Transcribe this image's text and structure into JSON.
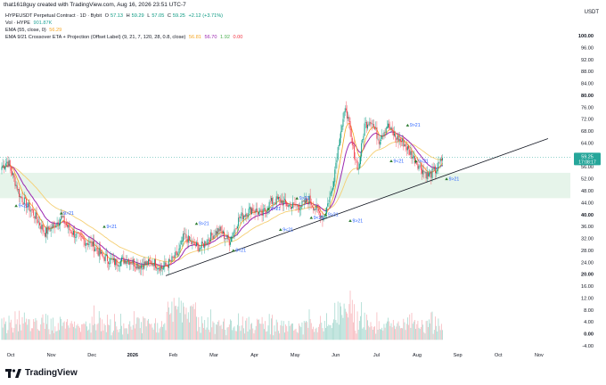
{
  "header": {
    "credit": "that1618guy created with TradingView.com, Aug 16, 2026 23:51 UTC-7",
    "currency": "USDT"
  },
  "legend": {
    "title": "HYPEUSDT Perpetual Contract · 1D · Bybit",
    "open_label": "O",
    "open": "57.13",
    "high_label": "H",
    "high": "59.29",
    "low_label": "L",
    "low": "57.05",
    "close_label": "C",
    "close": "59.25",
    "change": "+2.12 (+3.71%)",
    "vol_label": "Vol · HYPE",
    "vol_value": "901.87K",
    "ema_label": "EMA (55, close, 0)",
    "ema_value": "56.29",
    "cross_label": "EMA 9/21 Crossover ETA + Projection (Offset Label) (9, 21, 7, 120, 28, 0.8, close)",
    "cross_values": [
      "56.81",
      "56.70",
      "1.92",
      "0.00"
    ]
  },
  "price_badge": {
    "price": "59.25",
    "countdown": "17:08:17"
  },
  "brand": {
    "name": "TradingView"
  },
  "colors": {
    "up": "#089981",
    "down": "#f23645",
    "ema9": "#f5a623",
    "ema21": "#9c27b0",
    "ema55": "#f5cf73",
    "zone": "#e6f4ea",
    "trendline": "#131722",
    "badge": "#26a69a"
  },
  "chart_data": {
    "type": "candlestick",
    "price_axis": {
      "ticks": [
        "100.00",
        "96.00",
        "92.00",
        "88.00",
        "84.00",
        "80.00",
        "76.00",
        "72.00",
        "68.00",
        "64.00",
        "60.00",
        "56.00",
        "52.00",
        "48.00",
        "44.00",
        "40.00",
        "36.00",
        "32.00",
        "28.00",
        "24.00",
        "20.00",
        "16.00",
        "12.00",
        "8.00",
        "4.00",
        "0.00",
        "-4.00"
      ],
      "bold": [
        "100.00",
        "80.00",
        "40.00",
        "20.00",
        "0.00"
      ],
      "range": [
        -4,
        100
      ]
    },
    "time_axis": {
      "ticks": [
        "Oct",
        "Nov",
        "Dec",
        "2026",
        "Feb",
        "Mar",
        "Apr",
        "May",
        "Jun",
        "Jul",
        "Aug",
        "Sep",
        "Oct",
        "Nov"
      ],
      "bold": [
        "2026"
      ]
    },
    "zone": {
      "low": 45.5,
      "high": 54
    },
    "trendline": {
      "from": {
        "index": 160,
        "price": 19.5
      },
      "to": {
        "index": 533,
        "price": 65.5
      }
    },
    "price_line": 59.25,
    "anchors": [
      [
        0,
        56
      ],
      [
        6,
        58
      ],
      [
        18,
        46
      ],
      [
        30,
        41
      ],
      [
        42,
        34
      ],
      [
        50,
        36
      ],
      [
        58,
        39
      ],
      [
        66,
        35
      ],
      [
        76,
        32
      ],
      [
        88,
        30
      ],
      [
        98,
        26
      ],
      [
        110,
        24
      ],
      [
        122,
        25
      ],
      [
        134,
        23
      ],
      [
        148,
        24
      ],
      [
        156,
        22
      ],
      [
        164,
        24
      ],
      [
        172,
        27
      ],
      [
        178,
        33
      ],
      [
        186,
        30
      ],
      [
        194,
        29
      ],
      [
        202,
        32
      ],
      [
        212,
        35
      ],
      [
        222,
        31
      ],
      [
        232,
        39
      ],
      [
        244,
        42
      ],
      [
        254,
        40
      ],
      [
        262,
        44
      ],
      [
        270,
        45
      ],
      [
        280,
        43
      ],
      [
        292,
        43
      ],
      [
        300,
        45
      ],
      [
        306,
        42
      ],
      [
        314,
        39
      ],
      [
        322,
        48
      ],
      [
        330,
        67
      ],
      [
        336,
        76
      ],
      [
        342,
        63
      ],
      [
        348,
        55
      ],
      [
        354,
        70
      ],
      [
        360,
        72
      ],
      [
        368,
        65
      ],
      [
        376,
        70
      ],
      [
        384,
        66
      ],
      [
        392,
        64
      ],
      [
        400,
        60
      ],
      [
        408,
        56
      ],
      [
        416,
        53
      ],
      [
        424,
        55
      ],
      [
        430,
        59
      ]
    ],
    "ema_9_21_labels": [
      {
        "text": "9<21",
        "index": 14,
        "price": 43
      },
      {
        "text": "9>21",
        "index": 58,
        "price": 40.5
      },
      {
        "text": "9<21",
        "index": 100,
        "price": 36
      },
      {
        "text": "9>21",
        "index": 190,
        "price": 37
      },
      {
        "text": "9<21",
        "index": 226,
        "price": 28
      },
      {
        "text": "9>21",
        "index": 260,
        "price": 42
      },
      {
        "text": "9<21",
        "index": 272,
        "price": 35
      },
      {
        "text": "9>21",
        "index": 288,
        "price": 45.5
      },
      {
        "text": "9<21",
        "index": 302,
        "price": 39
      },
      {
        "text": "9>21",
        "index": 316,
        "price": 40
      },
      {
        "text": "9>21",
        "index": 340,
        "price": 38
      },
      {
        "text": "9>21",
        "index": 396,
        "price": 70
      },
      {
        "text": "9<21",
        "index": 380,
        "price": 58
      },
      {
        "text": "9<21",
        "index": 404,
        "price": 58
      },
      {
        "text": "9>21",
        "index": 434,
        "price": 52
      }
    ]
  }
}
